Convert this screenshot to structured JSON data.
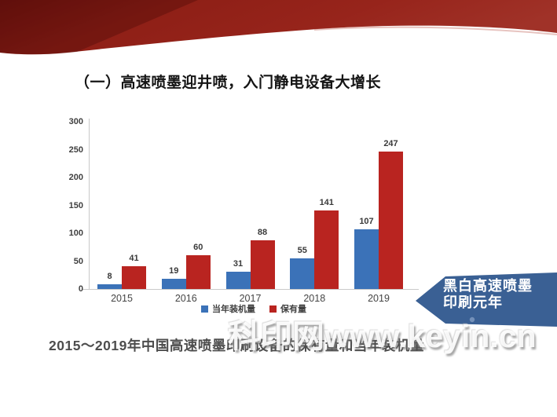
{
  "title": "（一）高速喷墨迎井喷，入门静电设备大增长",
  "caption": "2015～2019年中国高速喷墨印刷设备的保有量和当年装机量",
  "watermark": "科印网www.keyin.cn",
  "banner": {
    "line1": "黑白高速喷墨",
    "line2": "印刷元年",
    "color": "#3a6094"
  },
  "colors": {
    "bar_blue": "#3b72b8",
    "bar_red": "#b92420",
    "ribbon_red": "#8e1f16",
    "axis_line": "#c9c9c9",
    "text_dark": "#3f3f3f"
  },
  "chart_data": {
    "type": "bar",
    "categories": [
      "2015",
      "2016",
      "2017",
      "2018",
      "2019"
    ],
    "series": [
      {
        "name": "当年装机量",
        "color": "#3b72b8",
        "values": [
          8,
          19,
          31,
          55,
          107
        ]
      },
      {
        "name": "保有量",
        "color": "#b92420",
        "values": [
          41,
          60,
          88,
          141,
          247
        ]
      }
    ],
    "ylim": [
      0,
      300
    ],
    "yticks": [
      0,
      50,
      100,
      150,
      200,
      250,
      300
    ],
    "grid": false,
    "legend_position": "bottom",
    "title": "",
    "xlabel": "",
    "ylabel": ""
  }
}
